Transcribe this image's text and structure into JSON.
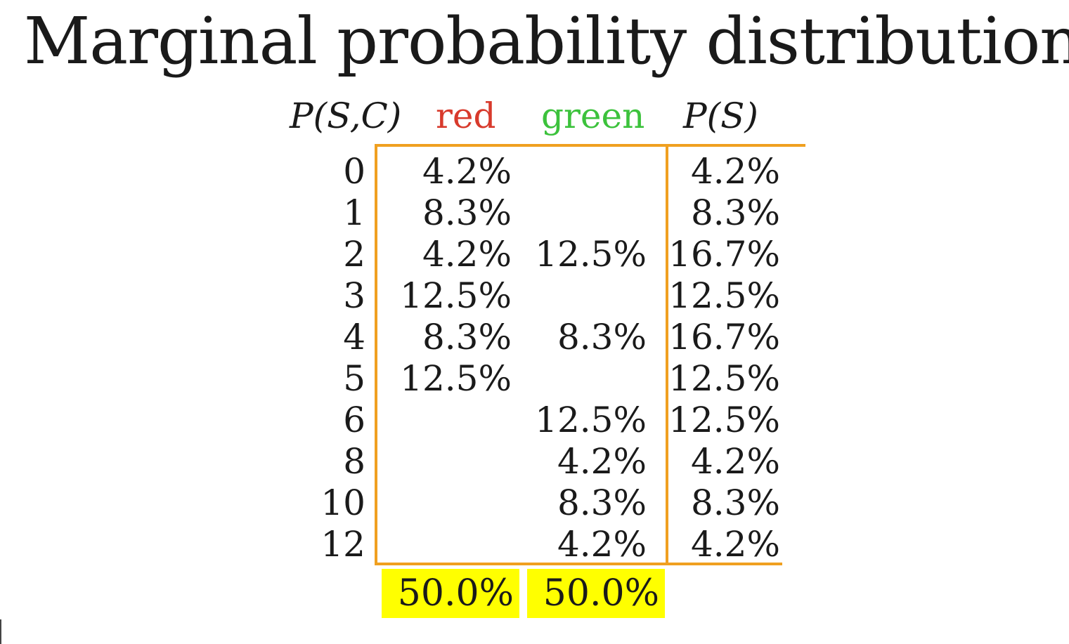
{
  "title": "Marginal probability distribution",
  "colors": {
    "red_label": "#d83a2c",
    "green_label": "#3cc23c",
    "frame": "#f0a020",
    "highlight": "#ffff00"
  },
  "table": {
    "header_joint": "P(S,C)",
    "header_red": "red",
    "header_green": "green",
    "header_marginal": "P(S)",
    "rows": [
      {
        "s": "0",
        "red": "4.2%",
        "green": "",
        "ps": "4.2%"
      },
      {
        "s": "1",
        "red": "8.3%",
        "green": "",
        "ps": "8.3%"
      },
      {
        "s": "2",
        "red": "4.2%",
        "green": "12.5%",
        "ps": "16.7%"
      },
      {
        "s": "3",
        "red": "12.5%",
        "green": "",
        "ps": "12.5%"
      },
      {
        "s": "4",
        "red": "8.3%",
        "green": "8.3%",
        "ps": "16.7%"
      },
      {
        "s": "5",
        "red": "12.5%",
        "green": "",
        "ps": "12.5%"
      },
      {
        "s": "6",
        "red": "",
        "green": "12.5%",
        "ps": "12.5%"
      },
      {
        "s": "8",
        "red": "",
        "green": "4.2%",
        "ps": "4.2%"
      },
      {
        "s": "10",
        "red": "",
        "green": "8.3%",
        "ps": "8.3%"
      },
      {
        "s": "12",
        "red": "",
        "green": "4.2%",
        "ps": "4.2%"
      }
    ],
    "total_red": "50.0%",
    "total_green": "50.0%"
  }
}
